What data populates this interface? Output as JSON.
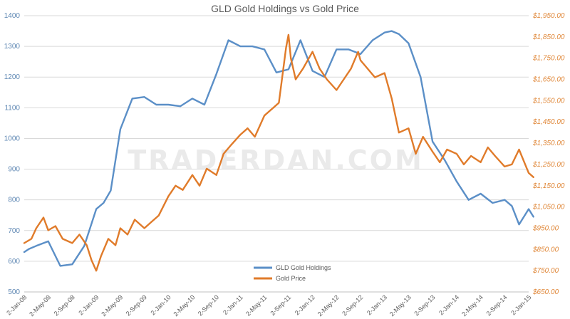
{
  "watermark": "TRADERDAN.COM",
  "colors": {
    "holdings": "#5b8fc7",
    "price": "#e07b2a",
    "left_axis": "#5e87b3",
    "right_axis": "#e0883a"
  },
  "chart_data": {
    "type": "line",
    "title": "GLD Gold Holdings vs Gold Price",
    "left_axis": {
      "min": 500,
      "max": 1400,
      "ticks": [
        "500",
        "600",
        "700",
        "800",
        "900",
        "1000",
        "1100",
        "1200",
        "1300",
        "1400"
      ]
    },
    "right_axis": {
      "min": 650,
      "max": 1950,
      "ticks": [
        "$650.00",
        "$750.00",
        "$850.00",
        "$950.00",
        "$1,050.00",
        "$1,150.00",
        "$1,250.00",
        "$1,350.00",
        "$1,450.00",
        "$1,550.00",
        "$1,650.00",
        "$1,750.00",
        "$1,850.00",
        "$1,950.00"
      ]
    },
    "x_ticks": [
      "2-Jan-08",
      "2-May-08",
      "2-Sep-08",
      "2-Jan-09",
      "2-May-09",
      "2-Sep-09",
      "2-Jan-10",
      "2-May-10",
      "2-Sep-10",
      "2-Jan-11",
      "2-May-11",
      "2-Sep-11",
      "2-Jan-12",
      "2-May-12",
      "2-Sep-12",
      "2-Jan-13",
      "2-May-13",
      "2-Sep-13",
      "2-Jan-14",
      "2-May-14",
      "2-Sep-14",
      "2-Jan-15"
    ],
    "legend": [
      "GLD Gold Holdings",
      "Gold Price"
    ],
    "series": [
      {
        "name": "GLD Gold Holdings",
        "axis": "left",
        "x": [
          0,
          0.2,
          0.5,
          1,
          1.5,
          2,
          2.5,
          3,
          3.3,
          3.6,
          4,
          4.5,
          5,
          5.5,
          6,
          6.5,
          7,
          7.5,
          8,
          8.5,
          9,
          9.5,
          10,
          10.5,
          11,
          11.5,
          12,
          12.5,
          13,
          13.5,
          14,
          14.5,
          15,
          15.3,
          15.6,
          16,
          16.5,
          17,
          17.5,
          18,
          18.5,
          19,
          19.5,
          20,
          20.3,
          20.6,
          21,
          21.2
        ],
        "values": [
          630,
          640,
          650,
          665,
          585,
          590,
          650,
          770,
          790,
          830,
          1030,
          1130,
          1135,
          1110,
          1110,
          1105,
          1130,
          1110,
          1210,
          1320,
          1300,
          1300,
          1290,
          1215,
          1225,
          1320,
          1220,
          1200,
          1290,
          1290,
          1275,
          1320,
          1345,
          1350,
          1340,
          1310,
          1200,
          990,
          930,
          860,
          800,
          820,
          790,
          800,
          780,
          720,
          770,
          745
        ]
      },
      {
        "name": "Gold Price",
        "axis": "right",
        "x": [
          0,
          0.3,
          0.5,
          0.8,
          1,
          1.3,
          1.6,
          2,
          2.3,
          2.6,
          2.8,
          3,
          3.2,
          3.5,
          3.8,
          4,
          4.3,
          4.6,
          5,
          5.3,
          5.6,
          6,
          6.3,
          6.6,
          7,
          7.3,
          7.6,
          8,
          8.3,
          8.6,
          9,
          9.3,
          9.6,
          10,
          10.3,
          10.6,
          10.9,
          11,
          11.1,
          11.3,
          11.6,
          12,
          12.3,
          12.6,
          13,
          13.3,
          13.6,
          13.9,
          14,
          14.3,
          14.6,
          15,
          15.3,
          15.6,
          16,
          16.3,
          16.6,
          17,
          17.3,
          17.6,
          18,
          18.3,
          18.6,
          19,
          19.3,
          19.6,
          20,
          20.3,
          20.6,
          21,
          21.2
        ],
        "values": [
          880,
          900,
          950,
          1000,
          940,
          960,
          900,
          880,
          920,
          870,
          800,
          750,
          820,
          900,
          870,
          950,
          920,
          990,
          950,
          980,
          1010,
          1100,
          1150,
          1130,
          1200,
          1150,
          1230,
          1200,
          1300,
          1340,
          1390,
          1420,
          1380,
          1480,
          1510,
          1540,
          1800,
          1860,
          1750,
          1650,
          1700,
          1780,
          1700,
          1650,
          1600,
          1650,
          1700,
          1780,
          1740,
          1700,
          1660,
          1680,
          1560,
          1400,
          1420,
          1300,
          1380,
          1310,
          1260,
          1320,
          1300,
          1250,
          1290,
          1260,
          1330,
          1290,
          1240,
          1250,
          1320,
          1210,
          1190
        ]
      }
    ]
  }
}
